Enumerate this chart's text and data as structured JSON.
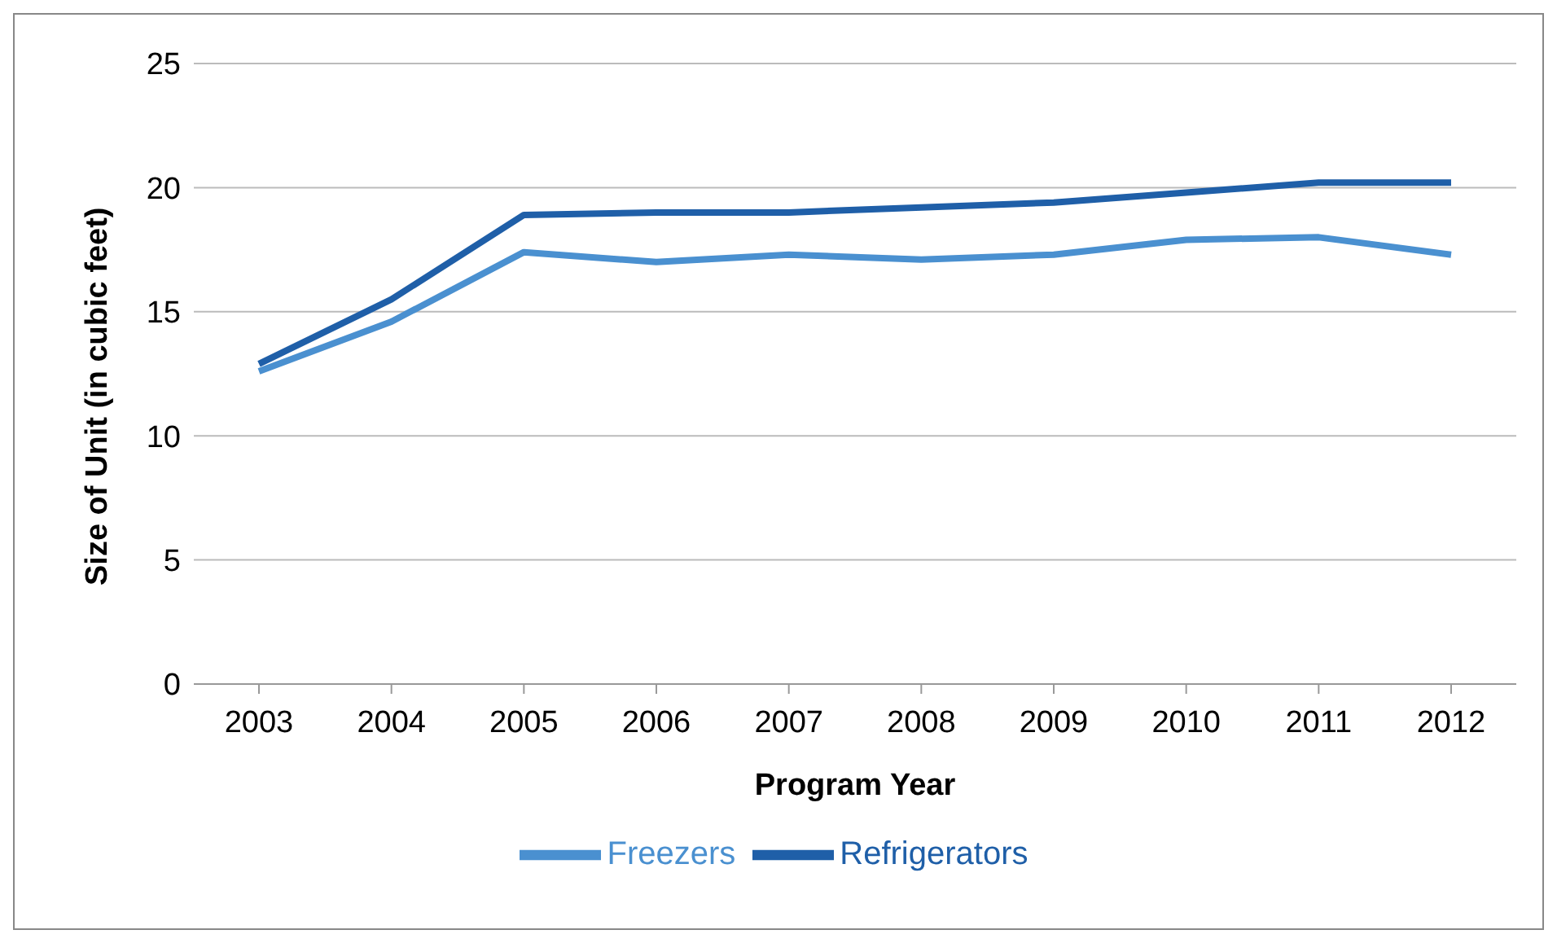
{
  "chart_data": {
    "type": "line",
    "xlabel": "Program Year",
    "ylabel": "Size of Unit (in cubic feet)",
    "categories": [
      "2003",
      "2004",
      "2005",
      "2006",
      "2007",
      "2008",
      "2009",
      "2010",
      "2011",
      "2012"
    ],
    "series": [
      {
        "name": "Refrigerators",
        "color": "#1f5fa8",
        "values": [
          12.9,
          15.5,
          18.9,
          19.0,
          19.0,
          19.2,
          19.4,
          19.8,
          20.2,
          20.2
        ]
      },
      {
        "name": "Freezers",
        "color": "#4a90d0",
        "values": [
          12.6,
          14.6,
          17.4,
          17.0,
          17.3,
          17.1,
          17.3,
          17.9,
          18.0,
          17.3
        ]
      }
    ],
    "ylim": [
      0,
      25
    ],
    "yticks": [
      0,
      5,
      10,
      15,
      20,
      25
    ],
    "grid": "y",
    "legend": "bottom",
    "marker": "none",
    "line_style": "solid"
  }
}
